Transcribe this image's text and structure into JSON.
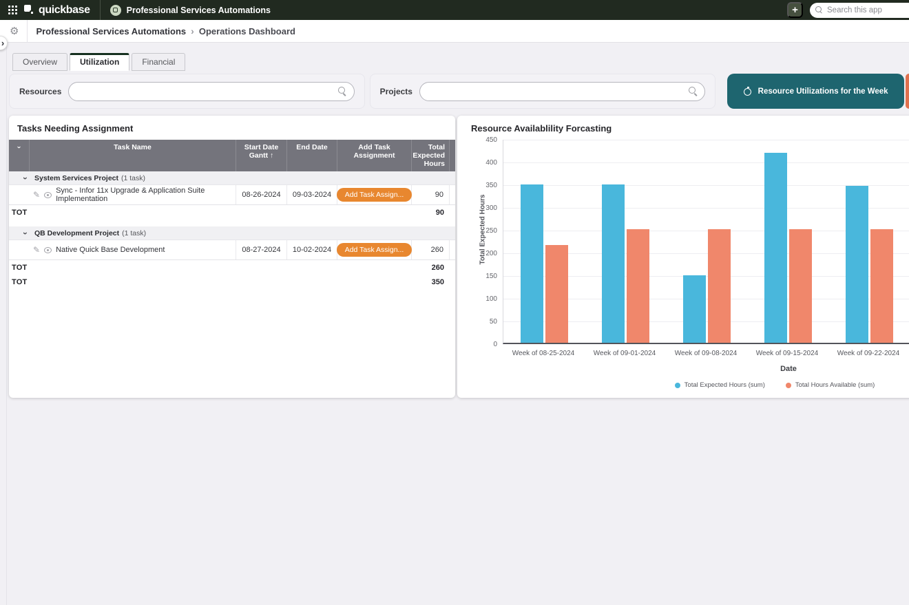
{
  "topbar": {
    "brand": "quickbase",
    "app_name": "Professional Services Automations",
    "add_button_label": "+",
    "search_placeholder": "Search this app"
  },
  "breadcrumb": {
    "root": "Professional Services Automations",
    "separator": "›",
    "current": "Operations Dashboard"
  },
  "expander_glyph": "›",
  "tabs": [
    {
      "label": "Overview"
    },
    {
      "label": "Utilization"
    },
    {
      "label": "Financial"
    }
  ],
  "filters": {
    "resources_label": "Resources",
    "projects_label": "Projects",
    "week_button_label": "Resource Utilizations for the Week"
  },
  "table": {
    "title": "Tasks Needing Assignment",
    "header_chevron": "›",
    "columns": {
      "task": "Task Name",
      "start": "Start Date Gantt ↑",
      "end": "End Date",
      "add": "Add Task Assignment",
      "hours": "Total Expected Hours"
    },
    "groups": [
      {
        "name": "System Services Project",
        "count": "(1 task)",
        "rows": [
          {
            "task": "Sync - Infor 11x Upgrade & Application Suite Implementation",
            "start": "08-26-2024",
            "end": "09-03-2024",
            "button": "Add Task Assign...",
            "hours": "90"
          }
        ],
        "total_label": "TOT",
        "total": "90"
      },
      {
        "name": "QB Development Project",
        "count": "(1 task)",
        "rows": [
          {
            "task": "Native Quick Base Development",
            "start": "08-27-2024",
            "end": "10-02-2024",
            "button": "Add Task Assign...",
            "hours": "260"
          }
        ],
        "total_label": "TOT",
        "total": "260"
      }
    ],
    "grand_total_label": "TOT",
    "grand_total": "350"
  },
  "chart_data": {
    "type": "bar",
    "title": "Resource Availablility Forcasting",
    "xlabel": "Date",
    "ylabel": "Total Expected Hours",
    "categories": [
      "Week of 08-25-2024",
      "Week of 09-01-2024",
      "Week of 09-08-2024",
      "Week of 09-15-2024",
      "Week of 09-22-2024"
    ],
    "series": [
      {
        "name": "Total Expected Hours (sum)",
        "color": "#49b7dc",
        "values": [
          349,
          349,
          149,
          418,
          345
        ]
      },
      {
        "name": "Total Hours Available (sum)",
        "color": "#f0876b",
        "values": [
          215,
          250,
          250,
          250,
          250
        ]
      }
    ],
    "ylim": [
      0,
      450
    ],
    "ytick_step": 50,
    "grid": true,
    "legend_position": "bottom"
  },
  "colors": {
    "topbar_bg": "#212a20",
    "teal_button": "#1e656f",
    "orange_button": "#e8872f",
    "orange_sliver": "#e0714e",
    "table_header_bg": "#74747c",
    "bar_blue": "#49b7dc",
    "bar_orange": "#f0876b"
  }
}
